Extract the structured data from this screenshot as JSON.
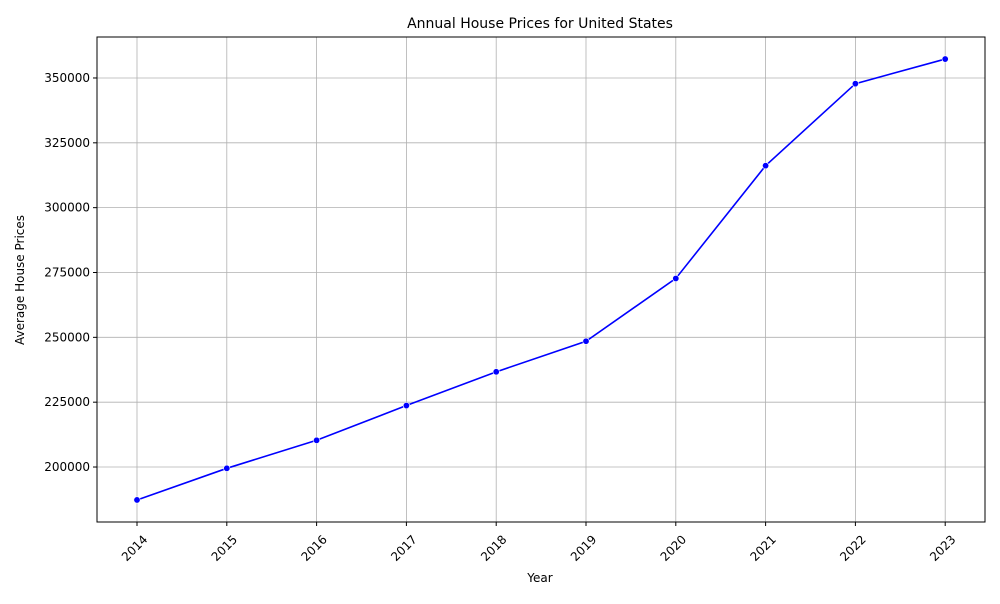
{
  "chart_data": {
    "type": "line",
    "title": "Annual House Prices for United States",
    "xlabel": "Year",
    "ylabel": "Average House Prices",
    "x": [
      "2014",
      "2015",
      "2016",
      "2017",
      "2018",
      "2019",
      "2020",
      "2021",
      "2022",
      "2023"
    ],
    "series": [
      {
        "values": [
          187300,
          199500,
          210300,
          223700,
          236700,
          248500,
          272700,
          316200,
          347800,
          357300
        ],
        "color": "#0000ff"
      }
    ],
    "y_ticks": [
      "200000",
      "225000",
      "250000",
      "275000",
      "300000",
      "325000",
      "350000"
    ],
    "ylim": [
      178800,
      365800
    ],
    "grid": true,
    "legend": "none",
    "marker": "circle",
    "x_tick_rotation": "45deg"
  }
}
